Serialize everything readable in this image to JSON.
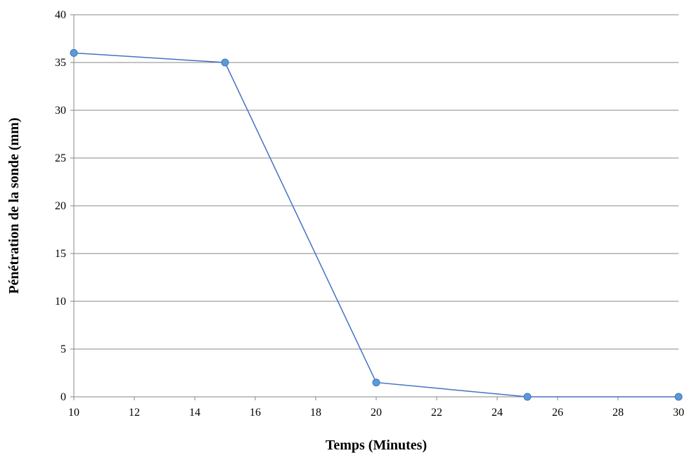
{
  "chart_data": {
    "type": "scatter",
    "mode": "lines+markers",
    "title": "",
    "xlabel": "Temps (Minutes)",
    "ylabel": "Pénétration de la sonde (mm)",
    "xlim": [
      10,
      30
    ],
    "ylim": [
      0,
      40
    ],
    "x_ticks": [
      10,
      12,
      14,
      16,
      18,
      20,
      22,
      24,
      26,
      28,
      30
    ],
    "y_ticks": [
      0,
      5,
      10,
      15,
      20,
      25,
      30,
      35,
      40
    ],
    "grid": "horizontal",
    "legend": "none",
    "series": [
      {
        "x": [
          10,
          15,
          20,
          25,
          30
        ],
        "y": [
          36,
          35,
          1.5,
          0,
          0
        ]
      }
    ],
    "colors": {
      "line": "#4472C4",
      "marker_fill": "#5B9BD5",
      "marker_edge": "#4472C4",
      "grid": "#878787",
      "axis": "#878787"
    }
  }
}
